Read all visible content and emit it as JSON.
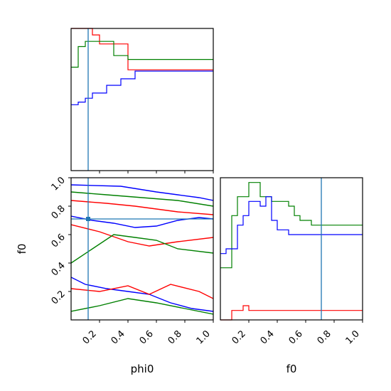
{
  "chart_data": {
    "type": "corner",
    "colors": {
      "red": "#ff0000",
      "green": "#008000",
      "blue": "#0000ff",
      "truth": "#1f77b4"
    },
    "parameters": [
      "phi0",
      "f0"
    ],
    "truth": {
      "phi0": 0.12,
      "f0": 0.71
    },
    "tick_labels": [
      "0.2",
      "0.4",
      "0.6",
      "0.8",
      "1.0"
    ],
    "xlabels": {
      "phi0": "phi0",
      "f0": "f0"
    },
    "ylabel": "f0",
    "ranges": {
      "phi0": [
        0.0,
        1.0
      ],
      "f0": [
        0.0,
        1.0
      ]
    },
    "hist_phi0": {
      "bin_width": 0.05,
      "series": [
        {
          "color": "red",
          "values": [
            1.1,
            1.1,
            1.1,
            1.05,
            0.98,
            0.98,
            0.98,
            0.98,
            0.78,
            0.78,
            0.78,
            0.78,
            0.78,
            0.78,
            0.78,
            0.78,
            0.78,
            0.78,
            0.78,
            0.78
          ]
        },
        {
          "color": "green",
          "values": [
            0.8,
            0.96,
            1.0,
            1.0,
            1.0,
            1.0,
            0.89,
            0.89,
            0.86,
            0.86,
            0.86,
            0.86,
            0.86,
            0.86,
            0.86,
            0.86,
            0.86,
            0.86,
            0.86,
            0.86
          ]
        },
        {
          "color": "blue",
          "values": [
            0.51,
            0.53,
            0.56,
            0.6,
            0.6,
            0.66,
            0.66,
            0.71,
            0.71,
            0.77,
            0.77,
            0.77,
            0.77,
            0.77,
            0.77,
            0.77,
            0.77,
            0.77,
            0.77,
            0.77
          ]
        }
      ]
    },
    "hist_f0": {
      "bin_width": 0.04,
      "series": [
        {
          "color": "red",
          "values": [
            0.0,
            0.0,
            0.02,
            0.02,
            0.03,
            0.02,
            0.02,
            0.02,
            0.02,
            0.02,
            0.02,
            0.02,
            0.02,
            0.02,
            0.02,
            0.02,
            0.02,
            0.02,
            0.02,
            0.02,
            0.02,
            0.02,
            0.02,
            0.02,
            0.02
          ]
        },
        {
          "color": "green",
          "values": [
            0.11,
            0.11,
            0.22,
            0.26,
            0.26,
            0.29,
            0.29,
            0.26,
            0.26,
            0.25,
            0.25,
            0.25,
            0.24,
            0.22,
            0.21,
            0.21,
            0.2,
            0.2,
            0.2,
            0.2,
            0.2,
            0.2,
            0.2,
            0.2,
            0.2
          ]
        },
        {
          "color": "blue",
          "values": [
            0.14,
            0.15,
            0.15,
            0.2,
            0.22,
            0.25,
            0.25,
            0.24,
            0.26,
            0.21,
            0.19,
            0.19,
            0.18,
            0.18,
            0.18,
            0.18,
            0.18,
            0.18,
            0.18,
            0.18,
            0.18,
            0.18,
            0.18,
            0.18,
            0.18
          ]
        }
      ]
    },
    "contours": [
      {
        "color": "blue",
        "points": [
          [
            0.0,
            0.95
          ],
          [
            0.35,
            0.94
          ],
          [
            0.6,
            0.9
          ],
          [
            0.75,
            0.88
          ],
          [
            0.9,
            0.86
          ],
          [
            1.0,
            0.84
          ]
        ]
      },
      {
        "color": "blue",
        "points": [
          [
            0.0,
            0.73
          ],
          [
            0.15,
            0.7
          ],
          [
            0.3,
            0.68
          ],
          [
            0.45,
            0.65
          ],
          [
            0.6,
            0.66
          ],
          [
            0.75,
            0.7
          ],
          [
            0.9,
            0.72
          ],
          [
            1.0,
            0.71
          ]
        ]
      },
      {
        "color": "blue",
        "points": [
          [
            0.0,
            0.3
          ],
          [
            0.1,
            0.25
          ],
          [
            0.25,
            0.22
          ],
          [
            0.4,
            0.2
          ],
          [
            0.55,
            0.18
          ],
          [
            0.7,
            0.12
          ],
          [
            0.85,
            0.08
          ],
          [
            1.0,
            0.06
          ]
        ]
      },
      {
        "color": "red",
        "points": [
          [
            0.0,
            0.84
          ],
          [
            0.25,
            0.82
          ],
          [
            0.45,
            0.8
          ],
          [
            0.6,
            0.78
          ],
          [
            0.75,
            0.76
          ],
          [
            1.0,
            0.74
          ]
        ]
      },
      {
        "color": "red",
        "points": [
          [
            0.0,
            0.67
          ],
          [
            0.2,
            0.62
          ],
          [
            0.4,
            0.55
          ],
          [
            0.55,
            0.52
          ],
          [
            0.75,
            0.55
          ],
          [
            1.0,
            0.58
          ]
        ]
      },
      {
        "color": "red",
        "points": [
          [
            0.0,
            0.22
          ],
          [
            0.2,
            0.2
          ],
          [
            0.4,
            0.24
          ],
          [
            0.55,
            0.18
          ],
          [
            0.7,
            0.25
          ],
          [
            0.9,
            0.2
          ],
          [
            1.0,
            0.15
          ]
        ]
      },
      {
        "color": "green",
        "points": [
          [
            0.0,
            0.9
          ],
          [
            0.25,
            0.88
          ],
          [
            0.5,
            0.86
          ],
          [
            0.75,
            0.84
          ],
          [
            1.0,
            0.8
          ]
        ]
      },
      {
        "color": "green",
        "points": [
          [
            0.0,
            0.4
          ],
          [
            0.15,
            0.5
          ],
          [
            0.3,
            0.6
          ],
          [
            0.45,
            0.58
          ],
          [
            0.6,
            0.56
          ],
          [
            0.75,
            0.5
          ],
          [
            1.0,
            0.47
          ]
        ]
      },
      {
        "color": "green",
        "points": [
          [
            0.0,
            0.06
          ],
          [
            0.2,
            0.1
          ],
          [
            0.4,
            0.15
          ],
          [
            0.6,
            0.12
          ],
          [
            0.8,
            0.08
          ],
          [
            1.0,
            0.04
          ]
        ]
      }
    ]
  }
}
